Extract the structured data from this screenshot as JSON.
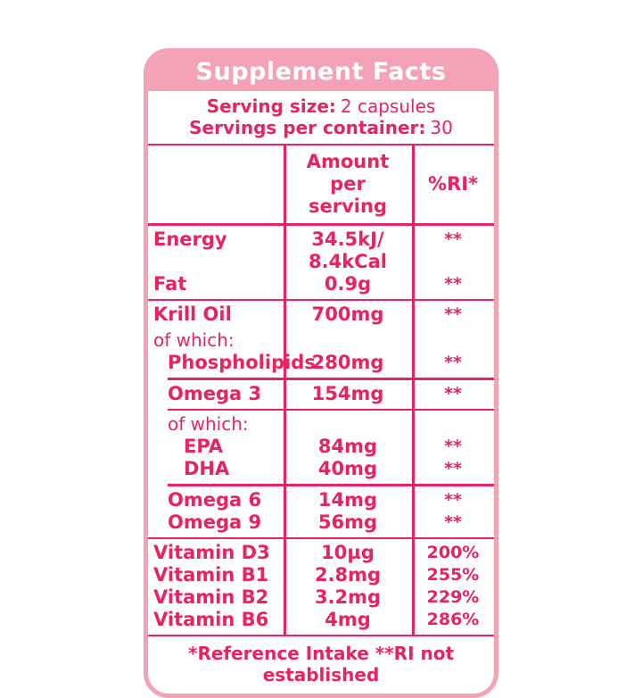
{
  "colors": {
    "deep_pink": "#e8235f",
    "light_pink": "#f4a2b6",
    "title_text": "#ffffff"
  },
  "label": {
    "title": "Supplement Facts",
    "serving_size_label": "Serving size:",
    "serving_size_value": "2 capsules",
    "servings_container_label": "Servings per container:",
    "servings_container_value": "30",
    "footnote": "*Reference Intake **RI not established"
  },
  "table": {
    "headers": {
      "name": "",
      "amount": "Amount per serving",
      "ri": "%RI*"
    },
    "sections": [
      {
        "rows": [
          {
            "name": "Energy",
            "amount": "34.5kJ/ 8.4kCal",
            "ri": "**"
          },
          {
            "name": "Fat",
            "amount": "0.9g",
            "ri": "**"
          }
        ]
      },
      {
        "rows": [
          {
            "name": "Krill Oil",
            "amount": "700mg",
            "ri": "**"
          },
          {
            "name": "of which:",
            "amount": "",
            "ri": ""
          },
          {
            "name": "Phospholipids",
            "amount": "280mg",
            "ri": "**"
          }
        ]
      },
      {
        "rows": [
          {
            "name": "Omega 3",
            "amount": "154mg",
            "ri": "**"
          }
        ]
      },
      {
        "rows": [
          {
            "name": "of which:",
            "amount": "",
            "ri": ""
          },
          {
            "name": "EPA",
            "amount": "84mg",
            "ri": "**"
          },
          {
            "name": "DHA",
            "amount": "40mg",
            "ri": "**"
          }
        ]
      },
      {
        "rows": [
          {
            "name": "Omega 6",
            "amount": "14mg",
            "ri": "**"
          },
          {
            "name": "Omega 9",
            "amount": "56mg",
            "ri": "**"
          }
        ]
      },
      {
        "rows": [
          {
            "name": "Vitamin D3",
            "amount": "10µg",
            "ri": "200%"
          },
          {
            "name": "Vitamin B1",
            "amount": "2.8mg",
            "ri": "255%"
          },
          {
            "name": "Vitamin B2",
            "amount": "3.2mg",
            "ri": "229%"
          },
          {
            "name": "Vitamin B6",
            "amount": "4mg",
            "ri": "286%"
          }
        ]
      }
    ]
  }
}
